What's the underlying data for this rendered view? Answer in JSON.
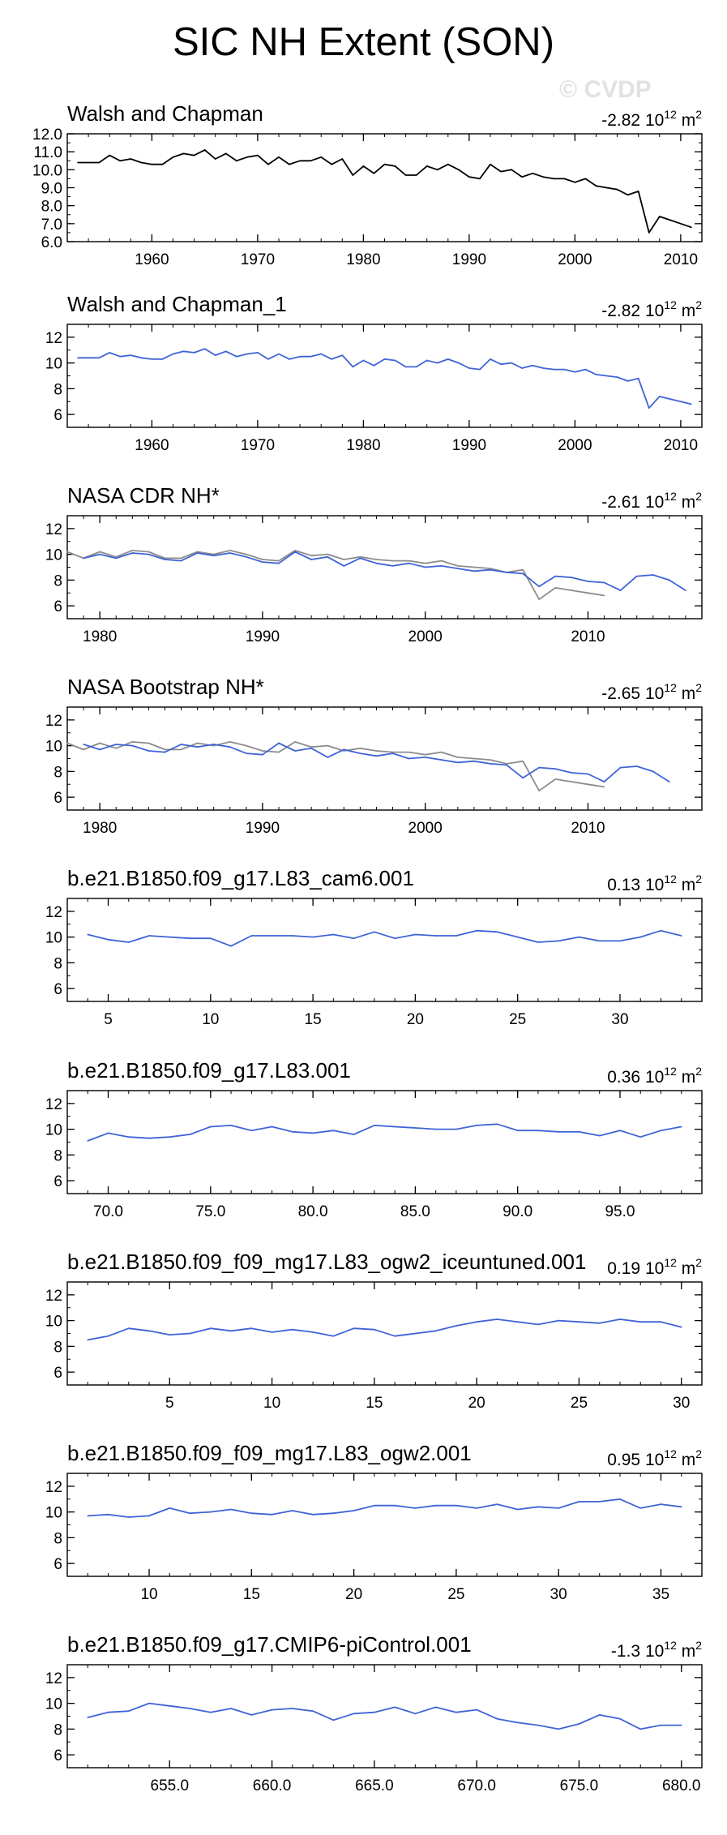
{
  "title": "SIC NH Extent (SON)",
  "watermark": "© CVDP",
  "chart_data": [
    {
      "type": "line",
      "title": "Walsh and Chapman",
      "trend": "-2.82",
      "units_base": "10",
      "units_exp": "12",
      "units_m": "m",
      "units_sup": "2",
      "xlim": [
        1952,
        2012
      ],
      "ylim": [
        6,
        12
      ],
      "xticks": [
        1960,
        1970,
        1980,
        1990,
        2000,
        2010
      ],
      "xtick_labels": [
        "1960",
        "1970",
        "1980",
        "1990",
        "2000",
        "2010"
      ],
      "yticks": [
        6,
        7,
        8,
        9,
        10,
        11,
        12
      ],
      "ytick_labels": [
        "6.0",
        "7.0",
        "8.0",
        "9.0",
        "10.0",
        "11.0",
        "12.0"
      ],
      "series": [
        {
          "name": "Walsh and Chapman",
          "color": "#000000",
          "x0": 1953,
          "step": 1,
          "values": [
            10.4,
            10.4,
            10.4,
            10.8,
            10.5,
            10.6,
            10.4,
            10.3,
            10.3,
            10.7,
            10.9,
            10.8,
            11.1,
            10.6,
            10.9,
            10.5,
            10.7,
            10.8,
            10.3,
            10.7,
            10.3,
            10.5,
            10.5,
            10.7,
            10.3,
            10.6,
            9.7,
            10.2,
            9.8,
            10.3,
            10.2,
            9.7,
            9.7,
            10.2,
            10.0,
            10.3,
            10.0,
            9.6,
            9.5,
            10.3,
            9.9,
            10.0,
            9.6,
            9.8,
            9.6,
            9.5,
            9.5,
            9.3,
            9.5,
            9.1,
            9.0,
            8.9,
            8.6,
            8.8,
            6.5,
            7.4,
            7.2,
            7.0,
            6.8
          ]
        }
      ]
    },
    {
      "type": "line",
      "title": "Walsh and Chapman_1",
      "trend": "-2.82",
      "units_base": "10",
      "units_exp": "12",
      "units_m": "m",
      "units_sup": "2",
      "xlim": [
        1952,
        2012
      ],
      "ylim": [
        5,
        13
      ],
      "xticks": [
        1960,
        1970,
        1980,
        1990,
        2000,
        2010
      ],
      "xtick_labels": [
        "1960",
        "1970",
        "1980",
        "1990",
        "2000",
        "2010"
      ],
      "yticks": [
        6,
        8,
        10,
        12
      ],
      "ytick_labels": [
        "6",
        "8",
        "10",
        "12"
      ],
      "series": [
        {
          "name": "Walsh and Chapman_1",
          "color": "#3f63d6",
          "x0": 1953,
          "step": 1,
          "values": [
            10.4,
            10.4,
            10.4,
            10.8,
            10.5,
            10.6,
            10.4,
            10.3,
            10.3,
            10.7,
            10.9,
            10.8,
            11.1,
            10.6,
            10.9,
            10.5,
            10.7,
            10.8,
            10.3,
            10.7,
            10.3,
            10.5,
            10.5,
            10.7,
            10.3,
            10.6,
            9.7,
            10.2,
            9.8,
            10.3,
            10.2,
            9.7,
            9.7,
            10.2,
            10.0,
            10.3,
            10.0,
            9.6,
            9.5,
            10.3,
            9.9,
            10.0,
            9.6,
            9.8,
            9.6,
            9.5,
            9.5,
            9.3,
            9.5,
            9.1,
            9.0,
            8.9,
            8.6,
            8.8,
            6.5,
            7.4,
            7.2,
            7.0,
            6.8
          ]
        }
      ]
    },
    {
      "type": "line",
      "title": "NASA CDR NH*",
      "trend": "-2.61",
      "units_base": "10",
      "units_exp": "12",
      "units_m": "m",
      "units_sup": "2",
      "xlim": [
        1978,
        2017
      ],
      "ylim": [
        5,
        13
      ],
      "xticks": [
        1980,
        1990,
        2000,
        2010
      ],
      "xtick_labels": [
        "1980",
        "1990",
        "2000",
        "2010"
      ],
      "yticks": [
        6,
        8,
        10,
        12
      ],
      "ytick_labels": [
        "6",
        "8",
        "10",
        "12"
      ],
      "series": [
        {
          "name": "Walsh and Chapman",
          "color": "#8c8c8c",
          "x0": 1978,
          "step": 1,
          "values": [
            10.2,
            9.7,
            10.2,
            9.8,
            10.3,
            10.2,
            9.7,
            9.7,
            10.2,
            10.0,
            10.3,
            10.0,
            9.6,
            9.5,
            10.3,
            9.9,
            10.0,
            9.6,
            9.8,
            9.6,
            9.5,
            9.5,
            9.3,
            9.5,
            9.1,
            9.0,
            8.9,
            8.6,
            8.8,
            6.5,
            7.4,
            7.2,
            7.0,
            6.8
          ]
        },
        {
          "name": "NASA CDR NH",
          "color": "#3f63d6",
          "x0": 1979,
          "step": 1,
          "values": [
            9.7,
            10.0,
            9.7,
            10.1,
            10.0,
            9.6,
            9.5,
            10.1,
            9.9,
            10.1,
            9.8,
            9.4,
            9.3,
            10.2,
            9.6,
            9.8,
            9.1,
            9.7,
            9.3,
            9.1,
            9.3,
            9.0,
            9.1,
            8.9,
            8.7,
            8.8,
            8.6,
            8.5,
            7.5,
            8.3,
            8.2,
            7.9,
            7.8,
            7.2,
            8.3,
            8.4,
            8.0,
            7.2
          ]
        }
      ]
    },
    {
      "type": "line",
      "title": "NASA Bootstrap NH*",
      "trend": "-2.65",
      "units_base": "10",
      "units_exp": "12",
      "units_m": "m",
      "units_sup": "2",
      "xlim": [
        1978,
        2017
      ],
      "ylim": [
        5,
        13
      ],
      "xticks": [
        1980,
        1990,
        2000,
        2010
      ],
      "xtick_labels": [
        "1980",
        "1990",
        "2000",
        "2010"
      ],
      "yticks": [
        6,
        8,
        10,
        12
      ],
      "ytick_labels": [
        "6",
        "8",
        "10",
        "12"
      ],
      "series": [
        {
          "name": "Walsh and Chapman",
          "color": "#8c8c8c",
          "x0": 1978,
          "step": 1,
          "values": [
            10.2,
            9.7,
            10.2,
            9.8,
            10.3,
            10.2,
            9.7,
            9.7,
            10.2,
            10.0,
            10.3,
            10.0,
            9.6,
            9.5,
            10.3,
            9.9,
            10.0,
            9.6,
            9.8,
            9.6,
            9.5,
            9.5,
            9.3,
            9.5,
            9.1,
            9.0,
            8.9,
            8.6,
            8.8,
            6.5,
            7.4,
            7.2,
            7.0,
            6.8
          ]
        },
        {
          "name": "NASA Bootstrap NH",
          "color": "#3f63d6",
          "x0": 1979,
          "step": 1,
          "values": [
            10.1,
            9.7,
            10.1,
            10.0,
            9.6,
            9.5,
            10.1,
            9.9,
            10.1,
            9.9,
            9.4,
            9.3,
            10.2,
            9.6,
            9.8,
            9.1,
            9.7,
            9.4,
            9.2,
            9.4,
            9.0,
            9.1,
            8.9,
            8.7,
            8.8,
            8.6,
            8.5,
            7.5,
            8.3,
            8.2,
            7.9,
            7.8,
            7.2,
            8.3,
            8.4,
            8.0,
            7.2
          ]
        }
      ]
    },
    {
      "type": "line",
      "title": "b.e21.B1850.f09_g17.L83_cam6.001",
      "trend": "0.13",
      "units_base": "10",
      "units_exp": "12",
      "units_m": "m",
      "units_sup": "2",
      "xlim": [
        3,
        34
      ],
      "ylim": [
        5,
        13
      ],
      "xticks": [
        5,
        10,
        15,
        20,
        25,
        30
      ],
      "xtick_labels": [
        "5",
        "10",
        "15",
        "20",
        "25",
        "30"
      ],
      "yticks": [
        6,
        8,
        10,
        12
      ],
      "ytick_labels": [
        "6",
        "8",
        "10",
        "12"
      ],
      "series": [
        {
          "name": "b.e21.B1850.f09_g17.L83_cam6.001",
          "color": "#3f63d6",
          "x0": 4,
          "step": 1,
          "values": [
            10.2,
            9.8,
            9.6,
            10.1,
            10.0,
            9.9,
            9.9,
            9.3,
            10.1,
            10.1,
            10.1,
            10.0,
            10.2,
            9.9,
            10.4,
            9.9,
            10.2,
            10.1,
            10.1,
            10.5,
            10.4,
            10.0,
            9.6,
            9.7,
            10.0,
            9.7,
            9.7,
            10.0,
            10.5,
            10.1
          ]
        }
      ]
    },
    {
      "type": "line",
      "title": "b.e21.B1850.f09_g17.L83.001",
      "trend": "0.36",
      "units_base": "10",
      "units_exp": "12",
      "units_m": "m",
      "units_sup": "2",
      "xlim": [
        68,
        99
      ],
      "ylim": [
        5,
        13
      ],
      "xticks": [
        70,
        75,
        80,
        85,
        90,
        95
      ],
      "xtick_labels": [
        "70.0",
        "75.0",
        "80.0",
        "85.0",
        "90.0",
        "95.0"
      ],
      "yticks": [
        6,
        8,
        10,
        12
      ],
      "ytick_labels": [
        "6",
        "8",
        "10",
        "12"
      ],
      "series": [
        {
          "name": "b.e21.B1850.f09_g17.L83.001",
          "color": "#3f63d6",
          "x0": 69,
          "step": 1,
          "values": [
            9.1,
            9.7,
            9.4,
            9.3,
            9.4,
            9.6,
            10.2,
            10.3,
            9.9,
            10.2,
            9.8,
            9.7,
            9.9,
            9.6,
            10.3,
            10.2,
            10.1,
            10.0,
            10.0,
            10.3,
            10.4,
            9.9,
            9.9,
            9.8,
            9.8,
            9.5,
            9.9,
            9.4,
            9.9,
            10.2
          ]
        }
      ]
    },
    {
      "type": "line",
      "title": "b.e21.B1850.f09_f09_mg17.L83_ogw2_iceuntuned.001",
      "trend": "0.19",
      "units_base": "10",
      "units_exp": "12",
      "units_m": "m",
      "units_sup": "2",
      "xlim": [
        0,
        31
      ],
      "ylim": [
        5,
        13
      ],
      "xticks": [
        5,
        10,
        15,
        20,
        25,
        30
      ],
      "xtick_labels": [
        "5",
        "10",
        "15",
        "20",
        "25",
        "30"
      ],
      "yticks": [
        6,
        8,
        10,
        12
      ],
      "ytick_labels": [
        "6",
        "8",
        "10",
        "12"
      ],
      "series": [
        {
          "name": "b.e21.B1850.f09_f09_mg17.L83_ogw2_iceuntuned.001",
          "color": "#3f63d6",
          "x0": 1,
          "step": 1,
          "values": [
            8.5,
            8.8,
            9.4,
            9.2,
            8.9,
            9.0,
            9.4,
            9.2,
            9.4,
            9.1,
            9.3,
            9.1,
            8.8,
            9.4,
            9.3,
            8.8,
            9.0,
            9.2,
            9.6,
            9.9,
            10.1,
            9.9,
            9.7,
            10.0,
            9.9,
            9.8,
            10.1,
            9.9,
            9.9,
            9.5
          ]
        }
      ]
    },
    {
      "type": "line",
      "title": "b.e21.B1850.f09_f09_mg17.L83_ogw2.001",
      "trend": "0.95",
      "units_base": "10",
      "units_exp": "12",
      "units_m": "m",
      "units_sup": "2",
      "xlim": [
        6,
        37
      ],
      "ylim": [
        5,
        13
      ],
      "xticks": [
        10,
        15,
        20,
        25,
        30,
        35
      ],
      "xtick_labels": [
        "10",
        "15",
        "20",
        "25",
        "30",
        "35"
      ],
      "yticks": [
        6,
        8,
        10,
        12
      ],
      "ytick_labels": [
        "6",
        "8",
        "10",
        "12"
      ],
      "series": [
        {
          "name": "b.e21.B1850.f09_f09_mg17.L83_ogw2.001",
          "color": "#3f63d6",
          "x0": 7,
          "step": 1,
          "values": [
            9.7,
            9.8,
            9.6,
            9.7,
            10.3,
            9.9,
            10.0,
            10.2,
            9.9,
            9.8,
            10.1,
            9.8,
            9.9,
            10.1,
            10.5,
            10.5,
            10.3,
            10.5,
            10.5,
            10.3,
            10.6,
            10.2,
            10.4,
            10.3,
            10.8,
            10.8,
            11.0,
            10.3,
            10.6,
            10.4
          ]
        }
      ]
    },
    {
      "type": "line",
      "title": "b.e21.B1850.f09_g17.CMIP6-piControl.001",
      "trend": "-1.3",
      "units_base": "10",
      "units_exp": "12",
      "units_m": "m",
      "units_sup": "2",
      "xlim": [
        650,
        681
      ],
      "ylim": [
        5,
        13
      ],
      "xticks": [
        655,
        660,
        665,
        670,
        675,
        680
      ],
      "xtick_labels": [
        "655.0",
        "660.0",
        "665.0",
        "670.0",
        "675.0",
        "680.0"
      ],
      "yticks": [
        6,
        8,
        10,
        12
      ],
      "ytick_labels": [
        "6",
        "8",
        "10",
        "12"
      ],
      "series": [
        {
          "name": "b.e21.B1850.f09_g17.CMIP6-piControl.001",
          "color": "#3f63d6",
          "x0": 651,
          "step": 1,
          "values": [
            8.9,
            9.3,
            9.4,
            10.0,
            9.8,
            9.6,
            9.3,
            9.6,
            9.1,
            9.5,
            9.6,
            9.4,
            8.7,
            9.2,
            9.3,
            9.7,
            9.2,
            9.7,
            9.3,
            9.5,
            8.8,
            8.5,
            8.3,
            8.0,
            8.4,
            9.1,
            8.8,
            8.0,
            8.3,
            8.3
          ]
        }
      ]
    }
  ]
}
